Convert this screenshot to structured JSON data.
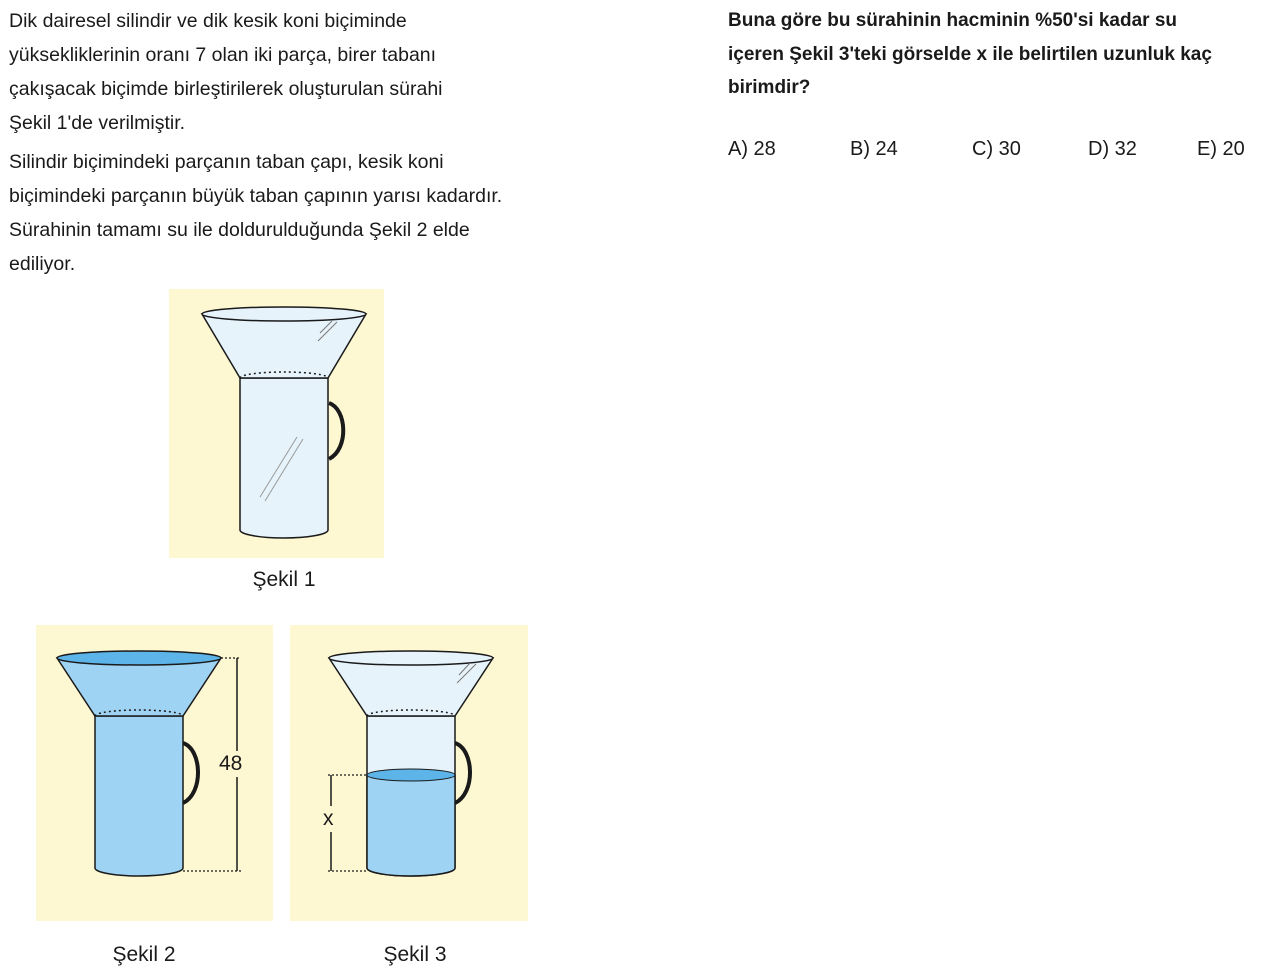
{
  "problem": {
    "paragraph1": [
      "Dik dairesel silindir ve dik kesik koni biçiminde",
      "yüksekliklerinin oranı 7 olan iki parça, birer tabanı",
      "çakışacak biçimde birleştirilerek oluşturulan sürahi",
      "Şekil 1'de verilmiştir."
    ],
    "paragraph2": [
      "Silindir biçimindeki parçanın taban çapı, kesik koni",
      "biçimindeki parçanın büyük taban çapının yarısı kadardır.",
      "Sürahinin tamamı su ile doldurulduğunda Şekil 2 elde",
      "ediliyor."
    ]
  },
  "question": {
    "lines": [
      "Buna göre bu sürahinin hacminin %50'si kadar su",
      "içeren Şekil 3'teki görselde x ile belirtilen uzunluk kaç",
      "birimdir?"
    ],
    "options": [
      "A) 28",
      "B) 24",
      "C) 30",
      "D) 32",
      "E) 20"
    ]
  },
  "figures": {
    "fig1_caption": "Şekil 1",
    "fig2_caption": "Şekil 2",
    "fig3_caption": "Şekil 3",
    "fig2_height_label": "48",
    "fig3_x_label": "x"
  },
  "colors": {
    "panel_background": "#fdf7d2",
    "empty_glass_fill": "#e6f3fb",
    "water_fill": "#9fd3f3",
    "water_surface": "#5db4e8",
    "outline": "#1a1a1a"
  }
}
